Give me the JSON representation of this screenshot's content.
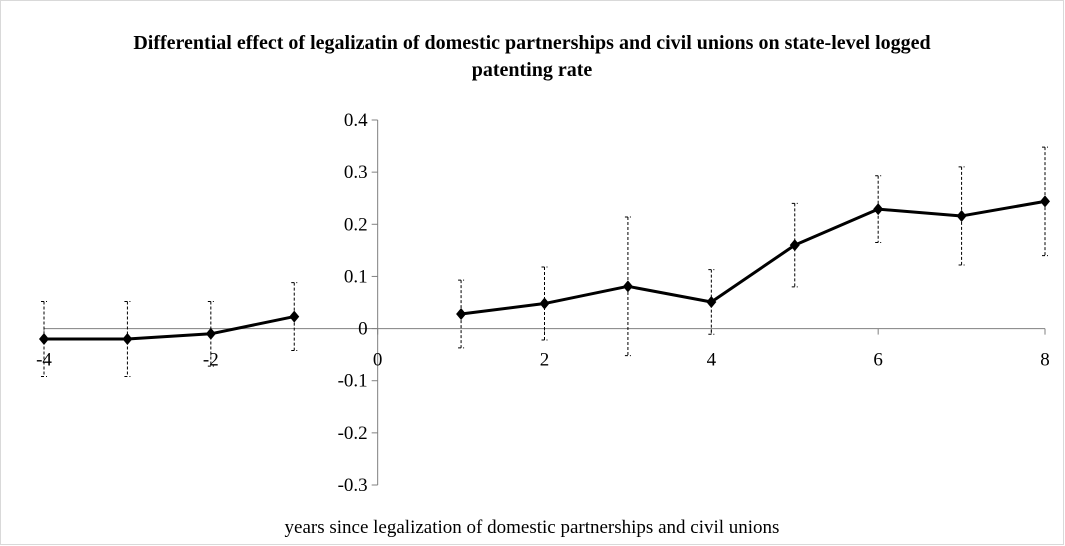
{
  "chart_data": {
    "type": "line",
    "title": "Differential effect of legalizatin of domestic partnerships and civil unions on state-level logged patenting rate",
    "x_label": "years since legalization of domestic partnerships and civil unions",
    "x": [
      -4,
      -3,
      -2,
      -1,
      0,
      1,
      2,
      3,
      4,
      5,
      6,
      7,
      8
    ],
    "series": [
      {
        "color": "#000000",
        "values": [
          -0.02,
          -0.02,
          -0.01,
          0.023,
          null,
          0.028,
          0.048,
          0.081,
          0.051,
          0.16,
          0.229,
          0.216,
          0.244
        ],
        "errors": [
          0.072,
          0.072,
          0.062,
          0.065,
          null,
          0.065,
          0.07,
          0.133,
          0.062,
          0.08,
          0.064,
          0.094,
          0.104
        ]
      }
    ],
    "xlim": [
      -4,
      8
    ],
    "xticks": [
      -4,
      -2,
      0,
      2,
      4,
      6,
      8
    ],
    "ylim": [
      -0.3,
      0.4
    ],
    "yticks": [
      -0.3,
      -0.2,
      -0.1,
      0,
      0.1,
      0.2,
      0.3,
      0.4
    ],
    "grid": false
  }
}
